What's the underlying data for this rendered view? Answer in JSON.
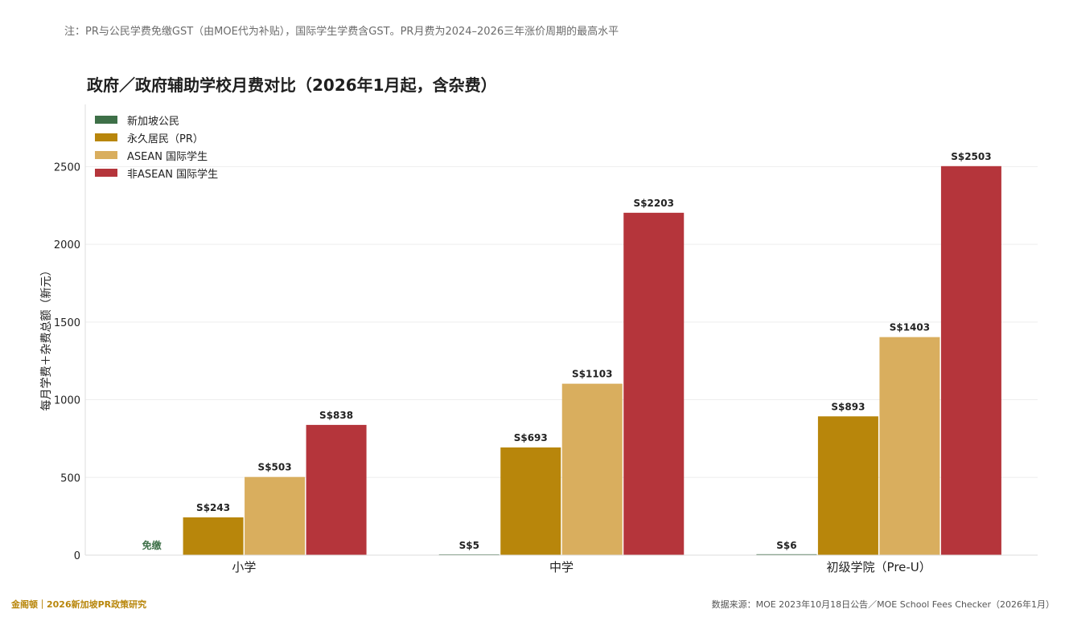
{
  "header": {
    "note": "注：PR与公民学费免缴GST（由MOE代为补贴），国际学生学费含GST。PR月费为2024–2026三年涨价周期的最高水平"
  },
  "footer": {
    "brand": "金阁顿｜2026新加坡PR政策研究",
    "source": "数据来源：MOE 2023年10月18日公告／MOE School Fees Checker（2026年1月）"
  },
  "chart_data": {
    "type": "bar",
    "title": "政府／政府辅助学校月费对比（2026年1月起，含杂费）",
    "ylabel": "每月学费＋杂费总额（新元）",
    "xlabel": "",
    "categories": [
      "小学",
      "中学",
      "初级学院（Pre-U）"
    ],
    "ylim": [
      0,
      2900
    ],
    "yticks": [
      0,
      500,
      1000,
      1500,
      2000,
      2500
    ],
    "grid": true,
    "legend_position": "top-left",
    "series": [
      {
        "name": "新加坡公民",
        "color": "#3e7048",
        "values": [
          0,
          5,
          6
        ],
        "labels": [
          "免缴",
          "S$5",
          "S$6"
        ]
      },
      {
        "name": "永久居民（PR）",
        "color": "#b8860b",
        "values": [
          243,
          693,
          893
        ],
        "labels": [
          "S$243",
          "S$693",
          "S$893"
        ]
      },
      {
        "name": "ASEAN 国际学生",
        "color": "#d9ae5e",
        "values": [
          503,
          1103,
          1403
        ],
        "labels": [
          "S$503",
          "S$1103",
          "S$1403"
        ]
      },
      {
        "name": "非ASEAN 国际学生",
        "color": "#b5353b",
        "values": [
          838,
          2203,
          2503
        ],
        "labels": [
          "S$838",
          "S$2203",
          "S$2503"
        ]
      }
    ]
  }
}
